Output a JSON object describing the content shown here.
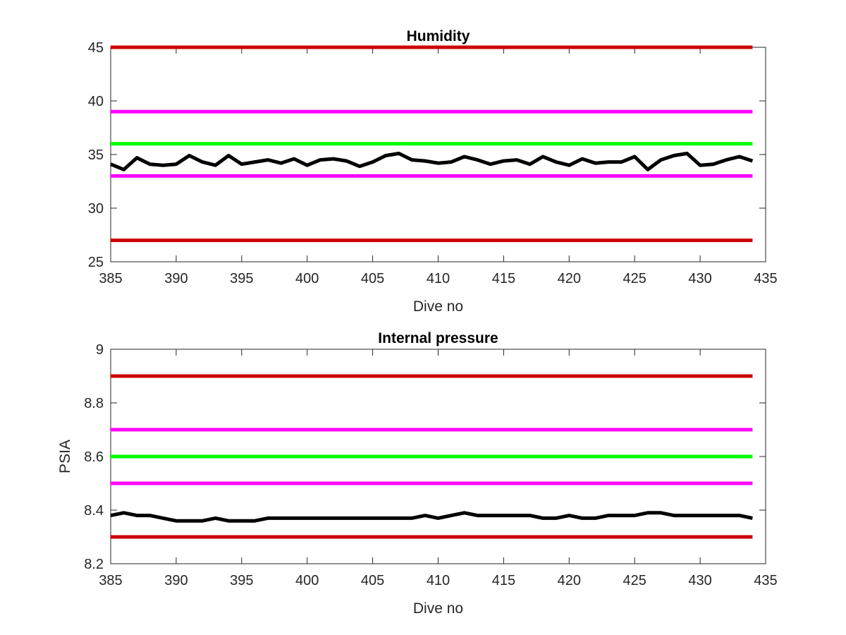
{
  "figure": {
    "colors": {
      "red": "#cc0000",
      "magenta": "#ff00ff",
      "green": "#00ff00",
      "data": "#000000",
      "axis": "#262626"
    }
  },
  "chart_data": [
    {
      "type": "line",
      "title": "Humidity",
      "xlabel": "Dive no",
      "ylabel": "",
      "xlim": [
        385,
        435
      ],
      "ylim": [
        25,
        45
      ],
      "xticks": [
        385,
        390,
        395,
        400,
        405,
        410,
        415,
        420,
        425,
        430,
        435
      ],
      "yticks": [
        25,
        30,
        35,
        40,
        45
      ],
      "xtick_labels": [
        "385",
        "390",
        "395",
        "400",
        "405",
        "410",
        "415",
        "420",
        "425",
        "430",
        "435"
      ],
      "ytick_labels": [
        "25",
        "30",
        "35",
        "40",
        "45"
      ],
      "reference_lines": [
        {
          "y": 45,
          "color": "red"
        },
        {
          "y": 39,
          "color": "magenta"
        },
        {
          "y": 36,
          "color": "green"
        },
        {
          "y": 33,
          "color": "magenta"
        },
        {
          "y": 27,
          "color": "red"
        }
      ],
      "series": [
        {
          "color": "black",
          "x": [
            385,
            386,
            387,
            388,
            389,
            390,
            391,
            392,
            393,
            394,
            395,
            396,
            397,
            398,
            399,
            400,
            401,
            402,
            403,
            404,
            405,
            406,
            407,
            408,
            409,
            410,
            411,
            412,
            413,
            414,
            415,
            416,
            417,
            418,
            419,
            420,
            421,
            422,
            423,
            424,
            425,
            426,
            427,
            428,
            429,
            430,
            431,
            432,
            433,
            434
          ],
          "values": [
            34.1,
            33.6,
            34.7,
            34.1,
            34.0,
            34.1,
            34.9,
            34.3,
            34.0,
            34.9,
            34.1,
            34.3,
            34.5,
            34.2,
            34.6,
            34.0,
            34.5,
            34.6,
            34.4,
            33.9,
            34.3,
            34.9,
            35.1,
            34.5,
            34.4,
            34.2,
            34.3,
            34.8,
            34.5,
            34.1,
            34.4,
            34.5,
            34.1,
            34.8,
            34.3,
            34.0,
            34.6,
            34.2,
            34.3,
            34.3,
            34.8,
            33.6,
            34.5,
            34.9,
            35.1,
            34.0,
            34.1,
            34.5,
            34.8,
            34.4
          ]
        }
      ]
    },
    {
      "type": "line",
      "title": "Internal pressure",
      "xlabel": "Dive no",
      "ylabel": "PSIA",
      "xlim": [
        385,
        435
      ],
      "ylim": [
        8.2,
        9.0
      ],
      "xticks": [
        385,
        390,
        395,
        400,
        405,
        410,
        415,
        420,
        425,
        430,
        435
      ],
      "yticks": [
        8.2,
        8.4,
        8.6,
        8.8,
        9.0
      ],
      "xtick_labels": [
        "385",
        "390",
        "395",
        "400",
        "405",
        "410",
        "415",
        "420",
        "425",
        "430",
        "435"
      ],
      "ytick_labels": [
        "8.2",
        "8.4",
        "8.6",
        "8.8",
        "9"
      ],
      "reference_lines": [
        {
          "y": 8.9,
          "color": "red"
        },
        {
          "y": 8.7,
          "color": "magenta"
        },
        {
          "y": 8.6,
          "color": "green"
        },
        {
          "y": 8.5,
          "color": "magenta"
        },
        {
          "y": 8.3,
          "color": "red"
        }
      ],
      "series": [
        {
          "color": "black",
          "x": [
            385,
            386,
            387,
            388,
            389,
            390,
            391,
            392,
            393,
            394,
            395,
            396,
            397,
            398,
            399,
            400,
            401,
            402,
            403,
            404,
            405,
            406,
            407,
            408,
            409,
            410,
            411,
            412,
            413,
            414,
            415,
            416,
            417,
            418,
            419,
            420,
            421,
            422,
            423,
            424,
            425,
            426,
            427,
            428,
            429,
            430,
            431,
            432,
            433,
            434
          ],
          "values": [
            8.38,
            8.39,
            8.38,
            8.38,
            8.37,
            8.36,
            8.36,
            8.36,
            8.37,
            8.36,
            8.36,
            8.36,
            8.37,
            8.37,
            8.37,
            8.37,
            8.37,
            8.37,
            8.37,
            8.37,
            8.37,
            8.37,
            8.37,
            8.37,
            8.38,
            8.37,
            8.38,
            8.39,
            8.38,
            8.38,
            8.38,
            8.38,
            8.38,
            8.37,
            8.37,
            8.38,
            8.37,
            8.37,
            8.38,
            8.38,
            8.38,
            8.39,
            8.39,
            8.38,
            8.38,
            8.38,
            8.38,
            8.38,
            8.38,
            8.37
          ]
        }
      ]
    }
  ]
}
